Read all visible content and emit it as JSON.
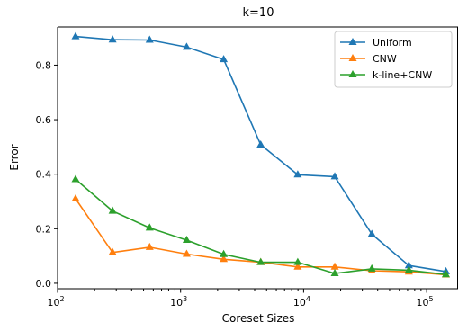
{
  "chart_data": {
    "type": "line",
    "title": "k=10",
    "xlabel": "Coreset Sizes",
    "ylabel": "Error",
    "xscale": "log",
    "xlim": [
      100,
      180000
    ],
    "ylim": [
      -0.02,
      0.94
    ],
    "x": [
      140,
      280,
      560,
      1120,
      2240,
      4480,
      8960,
      17920,
      35840,
      71680,
      143360
    ],
    "xticks": [
      {
        "value": 100,
        "base": "10",
        "exp": "2"
      },
      {
        "value": 1000,
        "base": "10",
        "exp": "3"
      },
      {
        "value": 10000,
        "base": "10",
        "exp": "4"
      },
      {
        "value": 100000,
        "base": "10",
        "exp": "5"
      }
    ],
    "yticks": [
      {
        "value": 0.0,
        "label": "0.0"
      },
      {
        "value": 0.2,
        "label": "0.2"
      },
      {
        "value": 0.4,
        "label": "0.4"
      },
      {
        "value": 0.6,
        "label": "0.6"
      },
      {
        "value": 0.8,
        "label": "0.8"
      }
    ],
    "series": [
      {
        "name": "Uniform",
        "color": "#1f77b4",
        "marker": "triangle-up",
        "values": [
          0.905,
          0.893,
          0.892,
          0.866,
          0.821,
          0.508,
          0.398,
          0.391,
          0.18,
          0.065,
          0.043
        ]
      },
      {
        "name": "CNW",
        "color": "#ff7f0e",
        "marker": "triangle-up",
        "values": [
          0.31,
          0.113,
          0.132,
          0.107,
          0.088,
          0.077,
          0.06,
          0.06,
          0.046,
          0.042,
          0.031
        ]
      },
      {
        "name": "k-line+CNW",
        "color": "#2ca02c",
        "marker": "triangle-up",
        "values": [
          0.381,
          0.265,
          0.203,
          0.158,
          0.106,
          0.077,
          0.077,
          0.036,
          0.053,
          0.048,
          0.032
        ]
      }
    ],
    "legend_position": "upper-right",
    "grid": false
  }
}
